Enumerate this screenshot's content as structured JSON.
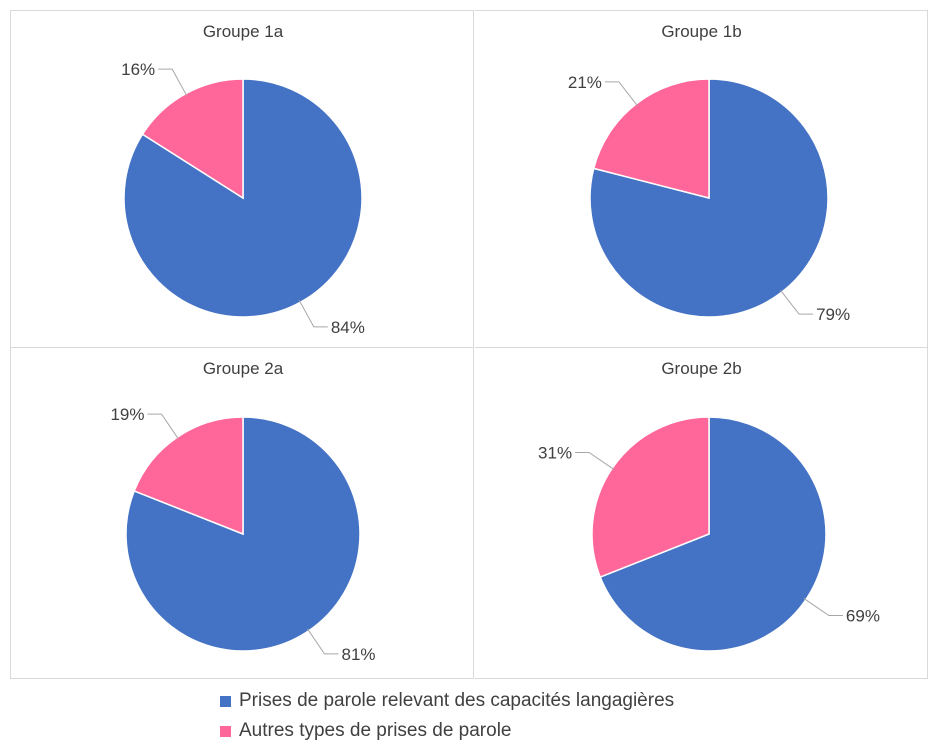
{
  "colors": {
    "series_main": "#4472C4",
    "series_other": "#FF6699",
    "leader": "#a6a6a6",
    "text": "#404040"
  },
  "legend": [
    {
      "label": "Prises de parole relevant des capacités langagières",
      "color": "#4472C4"
    },
    {
      "label": "Autres types de prises de parole",
      "color": "#FF6699"
    }
  ],
  "chart_data": [
    {
      "type": "pie",
      "title": "Groupe 1a",
      "categories": [
        "Prises de parole relevant des capacités langagières",
        "Autres types de prises de parole"
      ],
      "values": [
        84,
        16
      ],
      "labels": [
        "84%",
        "16%"
      ],
      "legend_position": "bottom"
    },
    {
      "type": "pie",
      "title": "Groupe 1b",
      "categories": [
        "Prises de parole relevant des capacités langagières",
        "Autres types de prises de parole"
      ],
      "values": [
        79,
        21
      ],
      "labels": [
        "79%",
        "21%"
      ],
      "legend_position": "bottom"
    },
    {
      "type": "pie",
      "title": "Groupe 2a",
      "categories": [
        "Prises de parole relevant des capacités langagières",
        "Autres types de prises de parole"
      ],
      "values": [
        81,
        19
      ],
      "labels": [
        "81%",
        "19%"
      ],
      "legend_position": "bottom"
    },
    {
      "type": "pie",
      "title": "Groupe 2b",
      "categories": [
        "Prises de parole relevant des capacités langagières",
        "Autres types de prises de parole"
      ],
      "values": [
        69,
        31
      ],
      "labels": [
        "69%",
        "31%"
      ],
      "legend_position": "bottom"
    }
  ]
}
